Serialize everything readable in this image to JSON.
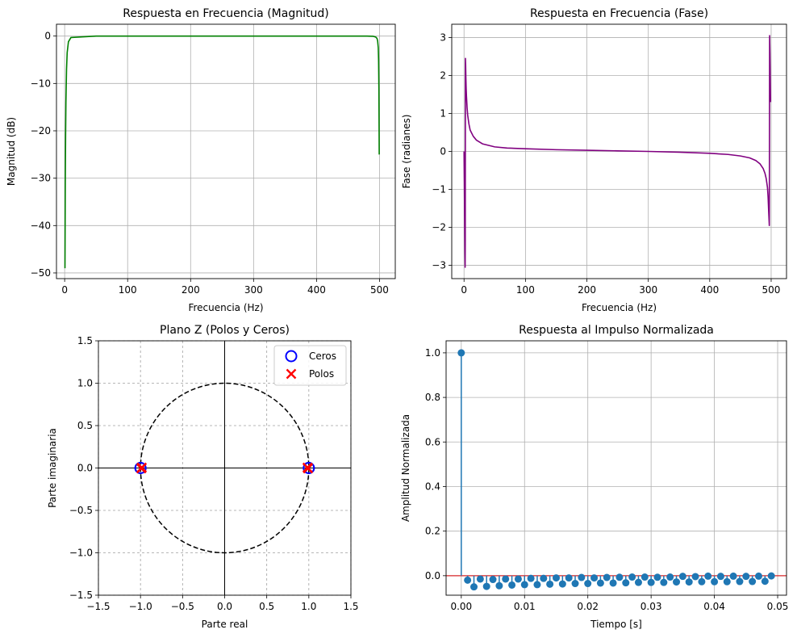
{
  "figure": {
    "background": "#ffffff"
  },
  "chart_data": [
    {
      "type": "line",
      "title": "Respuesta en Frecuencia (Magnitud)",
      "xlabel": "Frecuencia (Hz)",
      "ylabel": "Magnitud (dB)",
      "xlim": [
        -13,
        525
      ],
      "ylim": [
        -51.2,
        2.5
      ],
      "xticks": [
        0,
        100,
        200,
        300,
        400,
        500
      ],
      "xtick_labels": [
        "0",
        "100",
        "200",
        "300",
        "400",
        "500"
      ],
      "yticks": [
        0,
        -10,
        -20,
        -30,
        -40,
        -50
      ],
      "ytick_labels": [
        "0",
        "−10",
        "−20",
        "−30",
        "−40",
        "−50"
      ],
      "grid": true,
      "series": [
        {
          "color": "#008000",
          "x": [
            0.5,
            1,
            1.5,
            2,
            3,
            4,
            6,
            10,
            50,
            100,
            200,
            300,
            400,
            480,
            490,
            494,
            496,
            497,
            498,
            498.5,
            499,
            499.5
          ],
          "y": [
            -49,
            -31,
            -21,
            -14,
            -7,
            -3.5,
            -1.2,
            -0.3,
            0,
            0,
            0,
            0,
            0,
            0,
            -0.05,
            -0.2,
            -0.5,
            -1,
            -2.5,
            -5,
            -11,
            -25
          ]
        }
      ]
    },
    {
      "type": "line",
      "title": "Respuesta en Frecuencia (Fase)",
      "xlabel": "Frecuencia (Hz)",
      "ylabel": "Fase (radianes)",
      "xlim": [
        -20,
        525
      ],
      "ylim": [
        -3.35,
        3.35
      ],
      "xticks": [
        0,
        100,
        200,
        300,
        400,
        500
      ],
      "xtick_labels": [
        "0",
        "100",
        "200",
        "300",
        "400",
        "500"
      ],
      "yticks": [
        3,
        2,
        1,
        0,
        -1,
        -2,
        -3
      ],
      "ytick_labels": [
        "3",
        "2",
        "1",
        "0",
        "−1",
        "−2",
        "−3"
      ],
      "grid": true,
      "series": [
        {
          "color": "#800080",
          "x": [
            0,
            0.5,
            1,
            1.5,
            1.8,
            2,
            2.3,
            2.6,
            3,
            3.5,
            4,
            5,
            6,
            8,
            10,
            15,
            20,
            30,
            50,
            70,
            100,
            150,
            200,
            250,
            300,
            350,
            400,
            430,
            450,
            465,
            475,
            482,
            487,
            490,
            492,
            494,
            495,
            496,
            497,
            497.5,
            498,
            498.5,
            499
          ],
          "y": [
            0,
            -0.8,
            -1.8,
            -2.7,
            -3.05,
            -2.4,
            2.45,
            2.3,
            1.95,
            1.65,
            1.45,
            1.15,
            0.95,
            0.72,
            0.56,
            0.4,
            0.3,
            0.2,
            0.12,
            0.09,
            0.07,
            0.045,
            0.03,
            0.015,
            0,
            -0.02,
            -0.05,
            -0.08,
            -0.12,
            -0.17,
            -0.24,
            -0.33,
            -0.45,
            -0.58,
            -0.72,
            -0.95,
            -1.2,
            -1.6,
            -1.95,
            3.05,
            2.6,
            1.9,
            1.3
          ]
        }
      ]
    },
    {
      "type": "scatter",
      "title": "Plano Z (Polos y Ceros)",
      "xlabel": "Parte real",
      "ylabel": "Parte imaginaria",
      "xlim": [
        -1.5,
        1.5
      ],
      "ylim": [
        -1.5,
        1.5
      ],
      "xticks": [
        -1.5,
        -1,
        -0.5,
        0,
        0.5,
        1,
        1.5
      ],
      "xtick_labels": [
        "−1.5",
        "−1.0",
        "−0.5",
        "0.0",
        "0.5",
        "1.0",
        "1.5"
      ],
      "yticks": [
        1.5,
        1,
        0.5,
        0,
        -0.5,
        -1,
        -1.5
      ],
      "ytick_labels": [
        "1.5",
        "1.0",
        "0.5",
        "0.0",
        "−0.5",
        "−1.0",
        "−1.5"
      ],
      "grid": "dashed",
      "unit_circle": true,
      "legend_placement": "upper right",
      "series": [
        {
          "name": "Ceros",
          "marker": "circle",
          "color": "#0000ff",
          "x": [
            -1,
            -1,
            1,
            1
          ],
          "y": [
            0,
            0,
            0,
            0
          ]
        },
        {
          "name": "Polos",
          "marker": "x",
          "color": "#ff0000",
          "x": [
            -0.985,
            -0.99,
            0.985,
            0.99
          ],
          "y": [
            0.005,
            -0.005,
            0.005,
            -0.005
          ]
        }
      ]
    },
    {
      "type": "stem",
      "title": "Respuesta al Impulso Normalizada",
      "xlabel": "Tiempo [s]",
      "ylabel": "Amplitud Normalizada",
      "xlim": [
        -0.0024,
        0.0514
      ],
      "ylim": [
        -0.0875,
        1.054
      ],
      "xticks": [
        0,
        0.01,
        0.02,
        0.03,
        0.04,
        0.05
      ],
      "xtick_labels": [
        "0.00",
        "0.01",
        "0.02",
        "0.03",
        "0.04",
        "0.05"
      ],
      "yticks": [
        1,
        0.8,
        0.6,
        0.4,
        0.2,
        0
      ],
      "ytick_labels": [
        "1.0",
        "0.8",
        "0.6",
        "0.4",
        "0.2",
        "0.0"
      ],
      "grid": true,
      "series": [
        {
          "color": "#1f77b4",
          "x": [
            0,
            0.001,
            0.002,
            0.003,
            0.004,
            0.005,
            0.006,
            0.007,
            0.008,
            0.009,
            0.01,
            0.011,
            0.012,
            0.013,
            0.014,
            0.015,
            0.016,
            0.017,
            0.018,
            0.019,
            0.02,
            0.021,
            0.022,
            0.023,
            0.024,
            0.025,
            0.026,
            0.027,
            0.028,
            0.029,
            0.03,
            0.031,
            0.032,
            0.033,
            0.034,
            0.035,
            0.036,
            0.037,
            0.038,
            0.039,
            0.04,
            0.041,
            0.042,
            0.043,
            0.044,
            0.045,
            0.046,
            0.047,
            0.048,
            0.049
          ],
          "y": [
            1.0,
            -0.02,
            -0.05,
            -0.015,
            -0.048,
            -0.017,
            -0.045,
            -0.015,
            -0.042,
            -0.015,
            -0.04,
            -0.012,
            -0.04,
            -0.012,
            -0.038,
            -0.01,
            -0.037,
            -0.01,
            -0.035,
            -0.008,
            -0.035,
            -0.01,
            -0.033,
            -0.008,
            -0.033,
            -0.007,
            -0.032,
            -0.006,
            -0.03,
            -0.006,
            -0.03,
            -0.007,
            -0.03,
            -0.006,
            -0.028,
            -0.003,
            -0.028,
            -0.004,
            -0.027,
            -0.002,
            -0.027,
            -0.003,
            -0.027,
            -0.002,
            -0.026,
            -0.003,
            -0.026,
            -0.002,
            -0.025,
            -0.001
          ]
        }
      ]
    }
  ]
}
